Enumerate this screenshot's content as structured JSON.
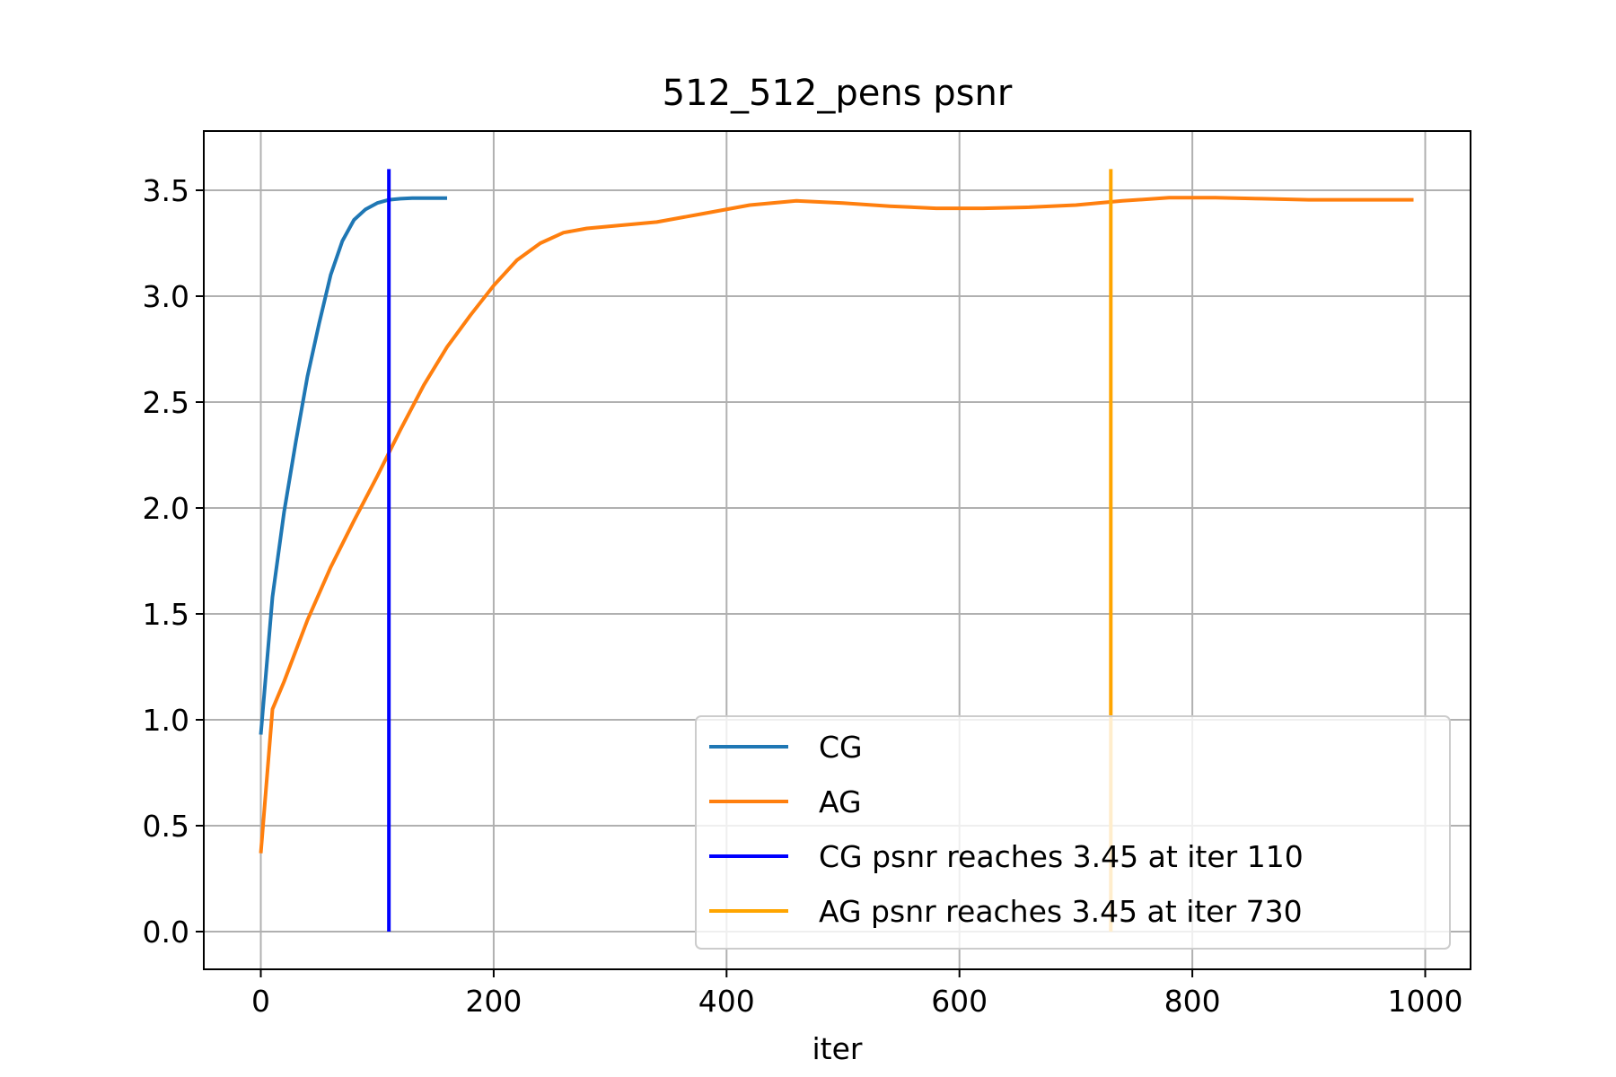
{
  "chart_data": {
    "type": "line",
    "title": "512_512_pens psnr",
    "xlabel": "iter",
    "ylabel": "",
    "xlim": [
      -50,
      1040
    ],
    "ylim": [
      -0.18,
      3.78
    ],
    "xticks": [
      0,
      200,
      400,
      600,
      800,
      1000
    ],
    "xtick_labels": [
      "0",
      "200",
      "400",
      "600",
      "800",
      "1000"
    ],
    "yticks": [
      0.0,
      0.5,
      1.0,
      1.5,
      2.0,
      2.5,
      3.0,
      3.5
    ],
    "ytick_labels": [
      "0.0",
      "0.5",
      "1.0",
      "1.5",
      "2.0",
      "2.5",
      "3.0",
      "3.5"
    ],
    "grid": true,
    "legend_position": "lower-right",
    "series": [
      {
        "name": "CG",
        "color": "#1f77b4",
        "x": [
          0,
          10,
          20,
          30,
          40,
          50,
          60,
          70,
          80,
          90,
          100,
          110,
          120,
          130,
          140,
          150,
          160
        ],
        "y": [
          0.93,
          1.58,
          1.98,
          2.31,
          2.62,
          2.87,
          3.1,
          3.26,
          3.36,
          3.41,
          3.44,
          3.455,
          3.46,
          3.463,
          3.463,
          3.463,
          3.463
        ]
      },
      {
        "name": "AG",
        "color": "#ff7f0e",
        "x": [
          0,
          10,
          20,
          40,
          60,
          80,
          100,
          120,
          140,
          160,
          180,
          200,
          220,
          240,
          260,
          280,
          300,
          340,
          380,
          420,
          460,
          500,
          540,
          580,
          620,
          660,
          700,
          740,
          780,
          820,
          860,
          900,
          940,
          990
        ],
        "y": [
          0.37,
          1.05,
          1.18,
          1.47,
          1.72,
          1.94,
          2.15,
          2.37,
          2.58,
          2.76,
          2.91,
          3.05,
          3.17,
          3.25,
          3.3,
          3.32,
          3.33,
          3.35,
          3.39,
          3.43,
          3.45,
          3.44,
          3.425,
          3.415,
          3.415,
          3.42,
          3.43,
          3.45,
          3.465,
          3.465,
          3.46,
          3.455,
          3.455,
          3.455
        ]
      }
    ],
    "vlines": [
      {
        "name": "CG psnr reaches 3.45 at iter 110",
        "color": "#0000ff",
        "x": 110,
        "ymin": 0.0,
        "ymax": 3.6
      },
      {
        "name": "AG psnr reaches 3.45 at iter 730",
        "color": "#ffa500",
        "x": 730,
        "ymin": 0.0,
        "ymax": 3.6
      }
    ]
  }
}
